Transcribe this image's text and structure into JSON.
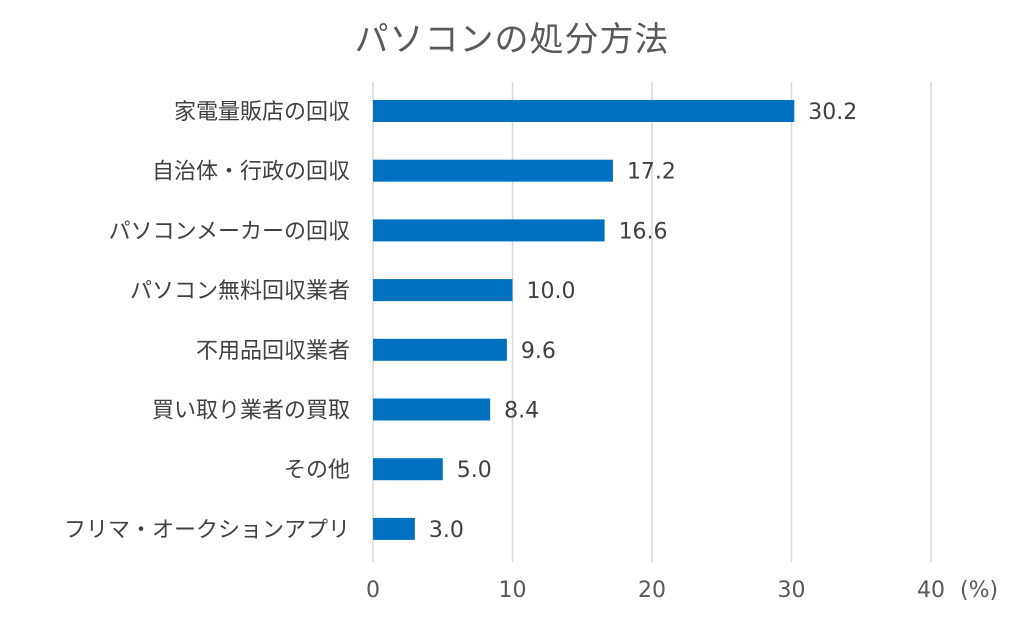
{
  "chart_data": {
    "type": "bar",
    "orientation": "horizontal",
    "title": "パソコンの処分方法",
    "categories": [
      "家電量販店の回収",
      "自治体・行政の回収",
      "パソコンメーカーの回収",
      "パソコン無料回収業者",
      "不用品回収業者",
      "買い取り業者の買取",
      "その他",
      "フリマ・オークションアプリ"
    ],
    "values": [
      30.2,
      17.2,
      16.6,
      10.0,
      9.6,
      8.4,
      5.0,
      3.0
    ],
    "value_labels": [
      "30.2",
      "17.2",
      "16.6",
      "10.0",
      "9.6",
      "8.4",
      "5.0",
      "3.0"
    ],
    "xlim": [
      0,
      40
    ],
    "x_ticks": [
      0,
      10,
      20,
      30,
      40
    ],
    "x_unit": "(%)",
    "grid": true,
    "bar_color": "#0070C0"
  }
}
